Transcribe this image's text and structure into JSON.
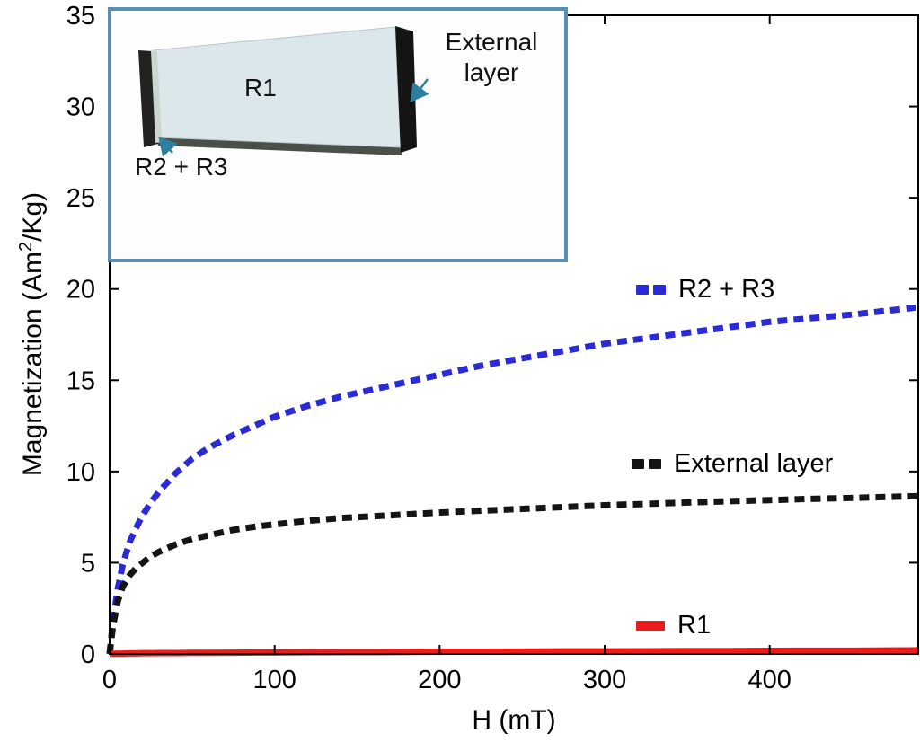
{
  "figure": {
    "y_axis_title_prefix": "Magnetization (Am",
    "y_axis_title_sup": "2",
    "y_axis_title_suffix": "/Kg)",
    "x_axis_title": "H (mT)"
  },
  "inset": {
    "label_r1": "R1",
    "label_external_line1": "External",
    "label_external_line2": "layer",
    "label_r2r3": "R2 + R3",
    "border_color": "#5a8fb5",
    "arrow_color": "#2e7f9e"
  },
  "chart_data": {
    "type": "line",
    "title": "",
    "xlabel": "H (mT)",
    "ylabel": "Magnetization (Am^2/Kg)",
    "xlim": [
      0,
      490
    ],
    "ylim": [
      0,
      35
    ],
    "xticks": [
      0,
      100,
      200,
      300,
      400
    ],
    "yticks": [
      0,
      5,
      10,
      15,
      20,
      25,
      30,
      35
    ],
    "grid": false,
    "legend_position": "inside-right",
    "x": [
      0,
      2,
      5,
      8,
      12,
      16,
      20,
      25,
      30,
      40,
      50,
      60,
      75,
      90,
      100,
      120,
      140,
      160,
      180,
      200,
      225,
      250,
      275,
      300,
      325,
      350,
      375,
      400,
      425,
      450,
      470,
      490
    ],
    "series": [
      {
        "name": "R2 + R3",
        "color": "#2b2bd5",
        "style": "dashed",
        "values": [
          0,
          1.8,
          3.6,
          4.9,
          6.1,
          6.9,
          7.6,
          8.3,
          8.9,
          9.9,
          10.7,
          11.3,
          12.0,
          12.6,
          13.0,
          13.6,
          14.1,
          14.5,
          14.9,
          15.3,
          15.8,
          16.2,
          16.6,
          17.0,
          17.3,
          17.6,
          17.9,
          18.2,
          18.4,
          18.6,
          18.8,
          19.0
        ]
      },
      {
        "name": "External layer",
        "color": "#141414",
        "style": "dashed",
        "values": [
          0,
          1.5,
          2.9,
          3.7,
          4.3,
          4.7,
          5.0,
          5.35,
          5.6,
          6.0,
          6.3,
          6.5,
          6.8,
          7.0,
          7.1,
          7.3,
          7.45,
          7.55,
          7.65,
          7.75,
          7.85,
          7.95,
          8.05,
          8.15,
          8.22,
          8.3,
          8.37,
          8.43,
          8.5,
          8.55,
          8.6,
          8.65
        ]
      },
      {
        "name": "R1",
        "color": "#ea1c1c",
        "style": "solid",
        "values": [
          0,
          0.01,
          0.02,
          0.02,
          0.03,
          0.03,
          0.04,
          0.04,
          0.05,
          0.05,
          0.06,
          0.06,
          0.07,
          0.08,
          0.08,
          0.09,
          0.1,
          0.1,
          0.11,
          0.12,
          0.12,
          0.13,
          0.14,
          0.14,
          0.15,
          0.16,
          0.16,
          0.17,
          0.18,
          0.18,
          0.19,
          0.2
        ]
      }
    ]
  }
}
